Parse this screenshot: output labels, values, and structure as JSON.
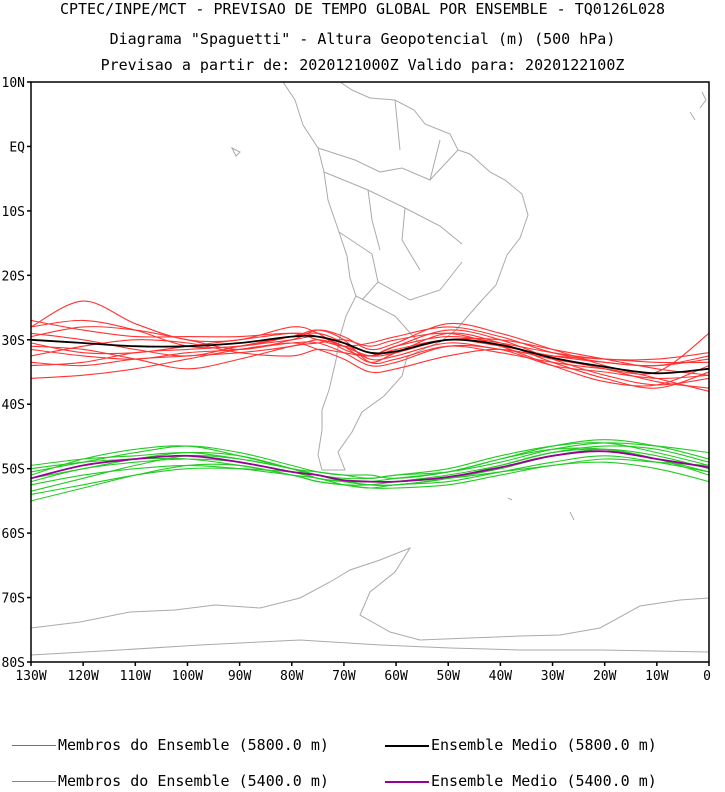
{
  "title": {
    "line1": "CPTEC/INPE/MCT - PREVISAO DE TEMPO GLOBAL POR ENSEMBLE - TQ0126L028",
    "line2": "Diagrama \"Spaguetti\" - Altura Geopotencial (m) (500 hPa)",
    "line3": "Previsao a partir de: 2020121000Z  Valido para: 2020122100Z"
  },
  "axes": {
    "lat_labels": [
      "10N",
      "EQ",
      "10S",
      "20S",
      "30S",
      "40S",
      "50S",
      "60S",
      "70S",
      "80S"
    ],
    "lat_values": [
      10,
      0,
      -10,
      -20,
      -30,
      -40,
      -50,
      -60,
      -70,
      -80
    ],
    "lon_labels": [
      "130W",
      "120W",
      "110W",
      "100W",
      "90W",
      "80W",
      "70W",
      "60W",
      "50W",
      "40W",
      "30W",
      "20W",
      "10W",
      "0"
    ],
    "lon_values": [
      -130,
      -120,
      -110,
      -100,
      -90,
      -80,
      -70,
      -60,
      -50,
      -40,
      -30,
      -20,
      -10,
      0
    ],
    "lon_range": [
      -130,
      0
    ],
    "lat_range": [
      -80,
      10
    ]
  },
  "legend": {
    "red_members": "Membros do Ensemble (5800.0 m)",
    "green_members": "Membros do Ensemble (5400.0 m)",
    "mean_5800": "Ensemble Medio (5800.0 m)",
    "mean_5400": "Ensemble Medio (5400.0 m)"
  },
  "colors": {
    "members_5800": "#ff3333",
    "members_5400": "#22cc22",
    "mean_5800": "#000000",
    "mean_5400": "#990099",
    "coast": "#aaaaaa"
  },
  "chart_data": {
    "type": "line",
    "x_unit": "longitude (deg)",
    "y_unit": "latitude (deg)",
    "x": [
      -130,
      -120,
      -110,
      -100,
      -90,
      -80,
      -75,
      -70,
      -65,
      -60,
      -50,
      -40,
      -30,
      -20,
      -10,
      0
    ],
    "series": [
      {
        "name": "Ensemble Medio (5800.0 m)",
        "values": [
          -30.0,
          -30.5,
          -31.0,
          -31.0,
          -30.5,
          -29.5,
          -29.5,
          -30.5,
          -32.0,
          -31.8,
          -30.0,
          -30.8,
          -32.8,
          -34.2,
          -35.2,
          -34.5
        ]
      },
      {
        "name": "Ensemble Medio (5400.0 m)",
        "values": [
          -51.5,
          -49.5,
          -48.5,
          -48.0,
          -49.0,
          -50.5,
          -51.0,
          -51.8,
          -52.0,
          -52.0,
          -51.3,
          -49.8,
          -48.0,
          -47.3,
          -48.5,
          -49.8
        ]
      }
    ],
    "members_5800": [
      [
        -27.0,
        -28.5,
        -29.5,
        -29.5,
        -29.5,
        -29.0,
        -30.0,
        -31.0,
        -30.5,
        -29.5,
        -28.0,
        -29.5,
        -32.0,
        -33.5,
        -34.0,
        -33.0
      ],
      [
        -28.0,
        -24.0,
        -27.5,
        -30.0,
        -30.0,
        -28.0,
        -29.0,
        -31.5,
        -32.5,
        -31.0,
        -28.5,
        -30.0,
        -33.0,
        -35.5,
        -37.0,
        -36.0
      ],
      [
        -29.0,
        -30.0,
        -31.5,
        -32.5,
        -31.0,
        -29.5,
        -29.0,
        -30.5,
        -33.0,
        -32.5,
        -30.5,
        -31.5,
        -32.5,
        -33.0,
        -33.5,
        -33.5
      ],
      [
        -30.5,
        -32.0,
        -32.0,
        -31.0,
        -30.0,
        -29.0,
        -29.5,
        -31.0,
        -33.5,
        -32.0,
        -29.0,
        -30.5,
        -33.5,
        -36.0,
        -37.5,
        -35.0
      ],
      [
        -31.5,
        -32.5,
        -33.0,
        -32.0,
        -31.5,
        -30.5,
        -30.5,
        -32.0,
        -34.0,
        -33.5,
        -31.0,
        -31.5,
        -34.0,
        -35.0,
        -36.0,
        -35.5
      ],
      [
        -33.5,
        -34.0,
        -33.0,
        -32.5,
        -32.0,
        -31.0,
        -30.0,
        -31.0,
        -32.5,
        -31.5,
        -30.0,
        -31.0,
        -32.5,
        -33.5,
        -34.0,
        -32.5
      ],
      [
        -36.0,
        -35.5,
        -34.5,
        -33.0,
        -31.5,
        -30.5,
        -31.5,
        -33.0,
        -35.0,
        -34.5,
        -32.5,
        -31.5,
        -33.0,
        -34.5,
        -36.5,
        -37.5
      ],
      [
        -29.5,
        -28.0,
        -28.5,
        -30.0,
        -31.5,
        -30.0,
        -28.5,
        -29.5,
        -31.5,
        -30.5,
        -27.5,
        -29.0,
        -31.5,
        -34.0,
        -36.0,
        -38.0
      ],
      [
        -32.5,
        -31.0,
        -30.0,
        -30.5,
        -32.0,
        -32.5,
        -31.5,
        -32.0,
        -32.5,
        -31.0,
        -29.5,
        -30.5,
        -32.0,
        -33.0,
        -33.0,
        -32.0
      ],
      [
        -31.0,
        -31.5,
        -33.0,
        -34.5,
        -33.0,
        -31.0,
        -30.5,
        -30.0,
        -31.0,
        -30.0,
        -29.0,
        -31.0,
        -34.0,
        -36.5,
        -37.0,
        -34.0
      ],
      [
        -28.0,
        -27.0,
        -28.5,
        -31.0,
        -31.0,
        -29.5,
        -28.5,
        -30.0,
        -33.5,
        -33.0,
        -31.0,
        -32.0,
        -33.5,
        -34.5,
        -35.0,
        -29.0
      ],
      [
        -34.0,
        -33.5,
        -32.0,
        -31.5,
        -31.0,
        -30.0,
        -29.5,
        -31.0,
        -32.5,
        -32.0,
        -30.0,
        -30.0,
        -31.5,
        -33.0,
        -34.5,
        -35.5
      ]
    ],
    "members_5400": [
      [
        -50.5,
        -49.0,
        -47.5,
        -46.5,
        -47.5,
        -49.5,
        -50.5,
        -51.0,
        -51.0,
        -51.5,
        -50.5,
        -48.5,
        -46.5,
        -45.5,
        -46.5,
        -48.5
      ],
      [
        -52.0,
        -50.0,
        -49.0,
        -48.5,
        -49.0,
        -50.5,
        -51.5,
        -52.0,
        -52.5,
        -52.5,
        -51.5,
        -50.0,
        -48.0,
        -47.0,
        -48.0,
        -50.0
      ],
      [
        -53.5,
        -51.5,
        -49.5,
        -48.0,
        -48.5,
        -50.0,
        -51.0,
        -52.0,
        -52.5,
        -52.5,
        -51.5,
        -49.5,
        -47.5,
        -47.0,
        -48.5,
        -51.0
      ],
      [
        -51.0,
        -48.5,
        -47.0,
        -46.5,
        -48.0,
        -50.0,
        -50.5,
        -51.0,
        -51.5,
        -51.0,
        -50.5,
        -49.0,
        -47.0,
        -46.0,
        -46.5,
        -47.5
      ],
      [
        -55.0,
        -53.0,
        -51.0,
        -49.5,
        -49.5,
        -51.0,
        -52.0,
        -52.5,
        -53.0,
        -53.0,
        -52.5,
        -51.0,
        -49.5,
        -49.0,
        -50.0,
        -52.0
      ],
      [
        -49.5,
        -48.5,
        -48.0,
        -47.5,
        -48.5,
        -50.0,
        -51.0,
        -51.5,
        -51.5,
        -51.0,
        -50.0,
        -48.0,
        -46.5,
        -46.0,
        -47.5,
        -49.5
      ],
      [
        -52.5,
        -51.0,
        -50.0,
        -49.5,
        -50.0,
        -51.0,
        -51.5,
        -52.5,
        -53.0,
        -52.5,
        -52.0,
        -50.5,
        -49.0,
        -48.0,
        -49.0,
        -50.5
      ],
      [
        -50.0,
        -49.0,
        -48.5,
        -48.5,
        -49.5,
        -51.0,
        -52.0,
        -52.5,
        -52.5,
        -52.0,
        -51.0,
        -49.5,
        -47.5,
        -46.5,
        -47.0,
        -49.0
      ],
      [
        -54.0,
        -52.5,
        -51.0,
        -50.0,
        -50.0,
        -50.5,
        -51.0,
        -52.0,
        -52.0,
        -52.0,
        -51.5,
        -50.5,
        -49.5,
        -48.5,
        -49.0,
        -49.5
      ],
      [
        -51.5,
        -50.0,
        -48.5,
        -47.5,
        -48.0,
        -50.0,
        -51.5,
        -52.0,
        -52.0,
        -51.5,
        -50.5,
        -48.5,
        -47.0,
        -47.0,
        -48.5,
        -50.5
      ]
    ]
  }
}
